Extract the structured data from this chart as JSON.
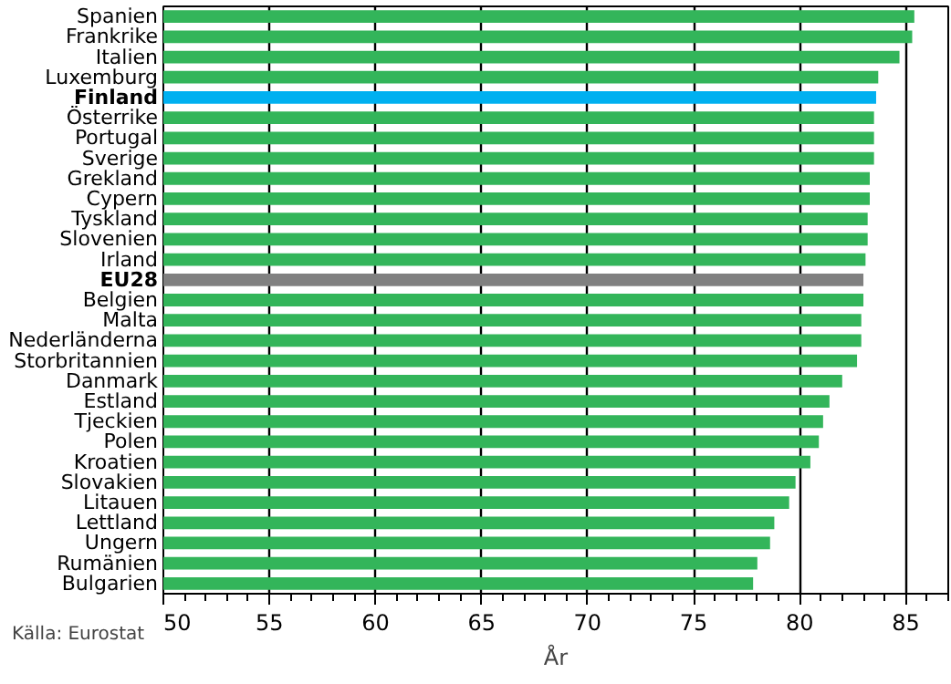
{
  "chart_data": {
    "type": "bar",
    "orientation": "horizontal",
    "xlabel": "År",
    "annotations": [
      "Källa: Eurostat"
    ],
    "categories": [
      "Spanien",
      "Frankrike",
      "Italien",
      "Luxemburg",
      "Finland",
      "Österrike",
      "Portugal",
      "Sverige",
      "Grekland",
      "Cypern",
      "Tyskland",
      "Slovenien",
      "Irland",
      "EU28",
      "Belgien",
      "Malta",
      "Nederländerna",
      "Storbritannien",
      "Danmark",
      "Estland",
      "Tjeckien",
      "Polen",
      "Kroatien",
      "Slovakien",
      "Litauen",
      "Lettland",
      "Ungern",
      "Rumänien",
      "Bulgarien"
    ],
    "values": [
      85.4,
      85.3,
      84.7,
      83.7,
      83.6,
      83.5,
      83.5,
      83.5,
      83.3,
      83.3,
      83.2,
      83.2,
      83.1,
      83.0,
      83.0,
      82.9,
      82.9,
      82.7,
      82.0,
      81.4,
      81.1,
      80.9,
      80.5,
      79.8,
      79.5,
      78.8,
      78.6,
      78.0,
      77.8
    ],
    "colors": [
      "#33b55a",
      "#33b55a",
      "#33b55a",
      "#33b55a",
      "#00b0f0",
      "#33b55a",
      "#33b55a",
      "#33b55a",
      "#33b55a",
      "#33b55a",
      "#33b55a",
      "#33b55a",
      "#33b55a",
      "#808080",
      "#33b55a",
      "#33b55a",
      "#33b55a",
      "#33b55a",
      "#33b55a",
      "#33b55a",
      "#33b55a",
      "#33b55a",
      "#33b55a",
      "#33b55a",
      "#33b55a",
      "#33b55a",
      "#33b55a",
      "#33b55a",
      "#33b55a"
    ],
    "xlim": [
      50,
      87
    ],
    "xticks": [
      50,
      55,
      60,
      65,
      70,
      75,
      80,
      85
    ],
    "grid": "x"
  }
}
